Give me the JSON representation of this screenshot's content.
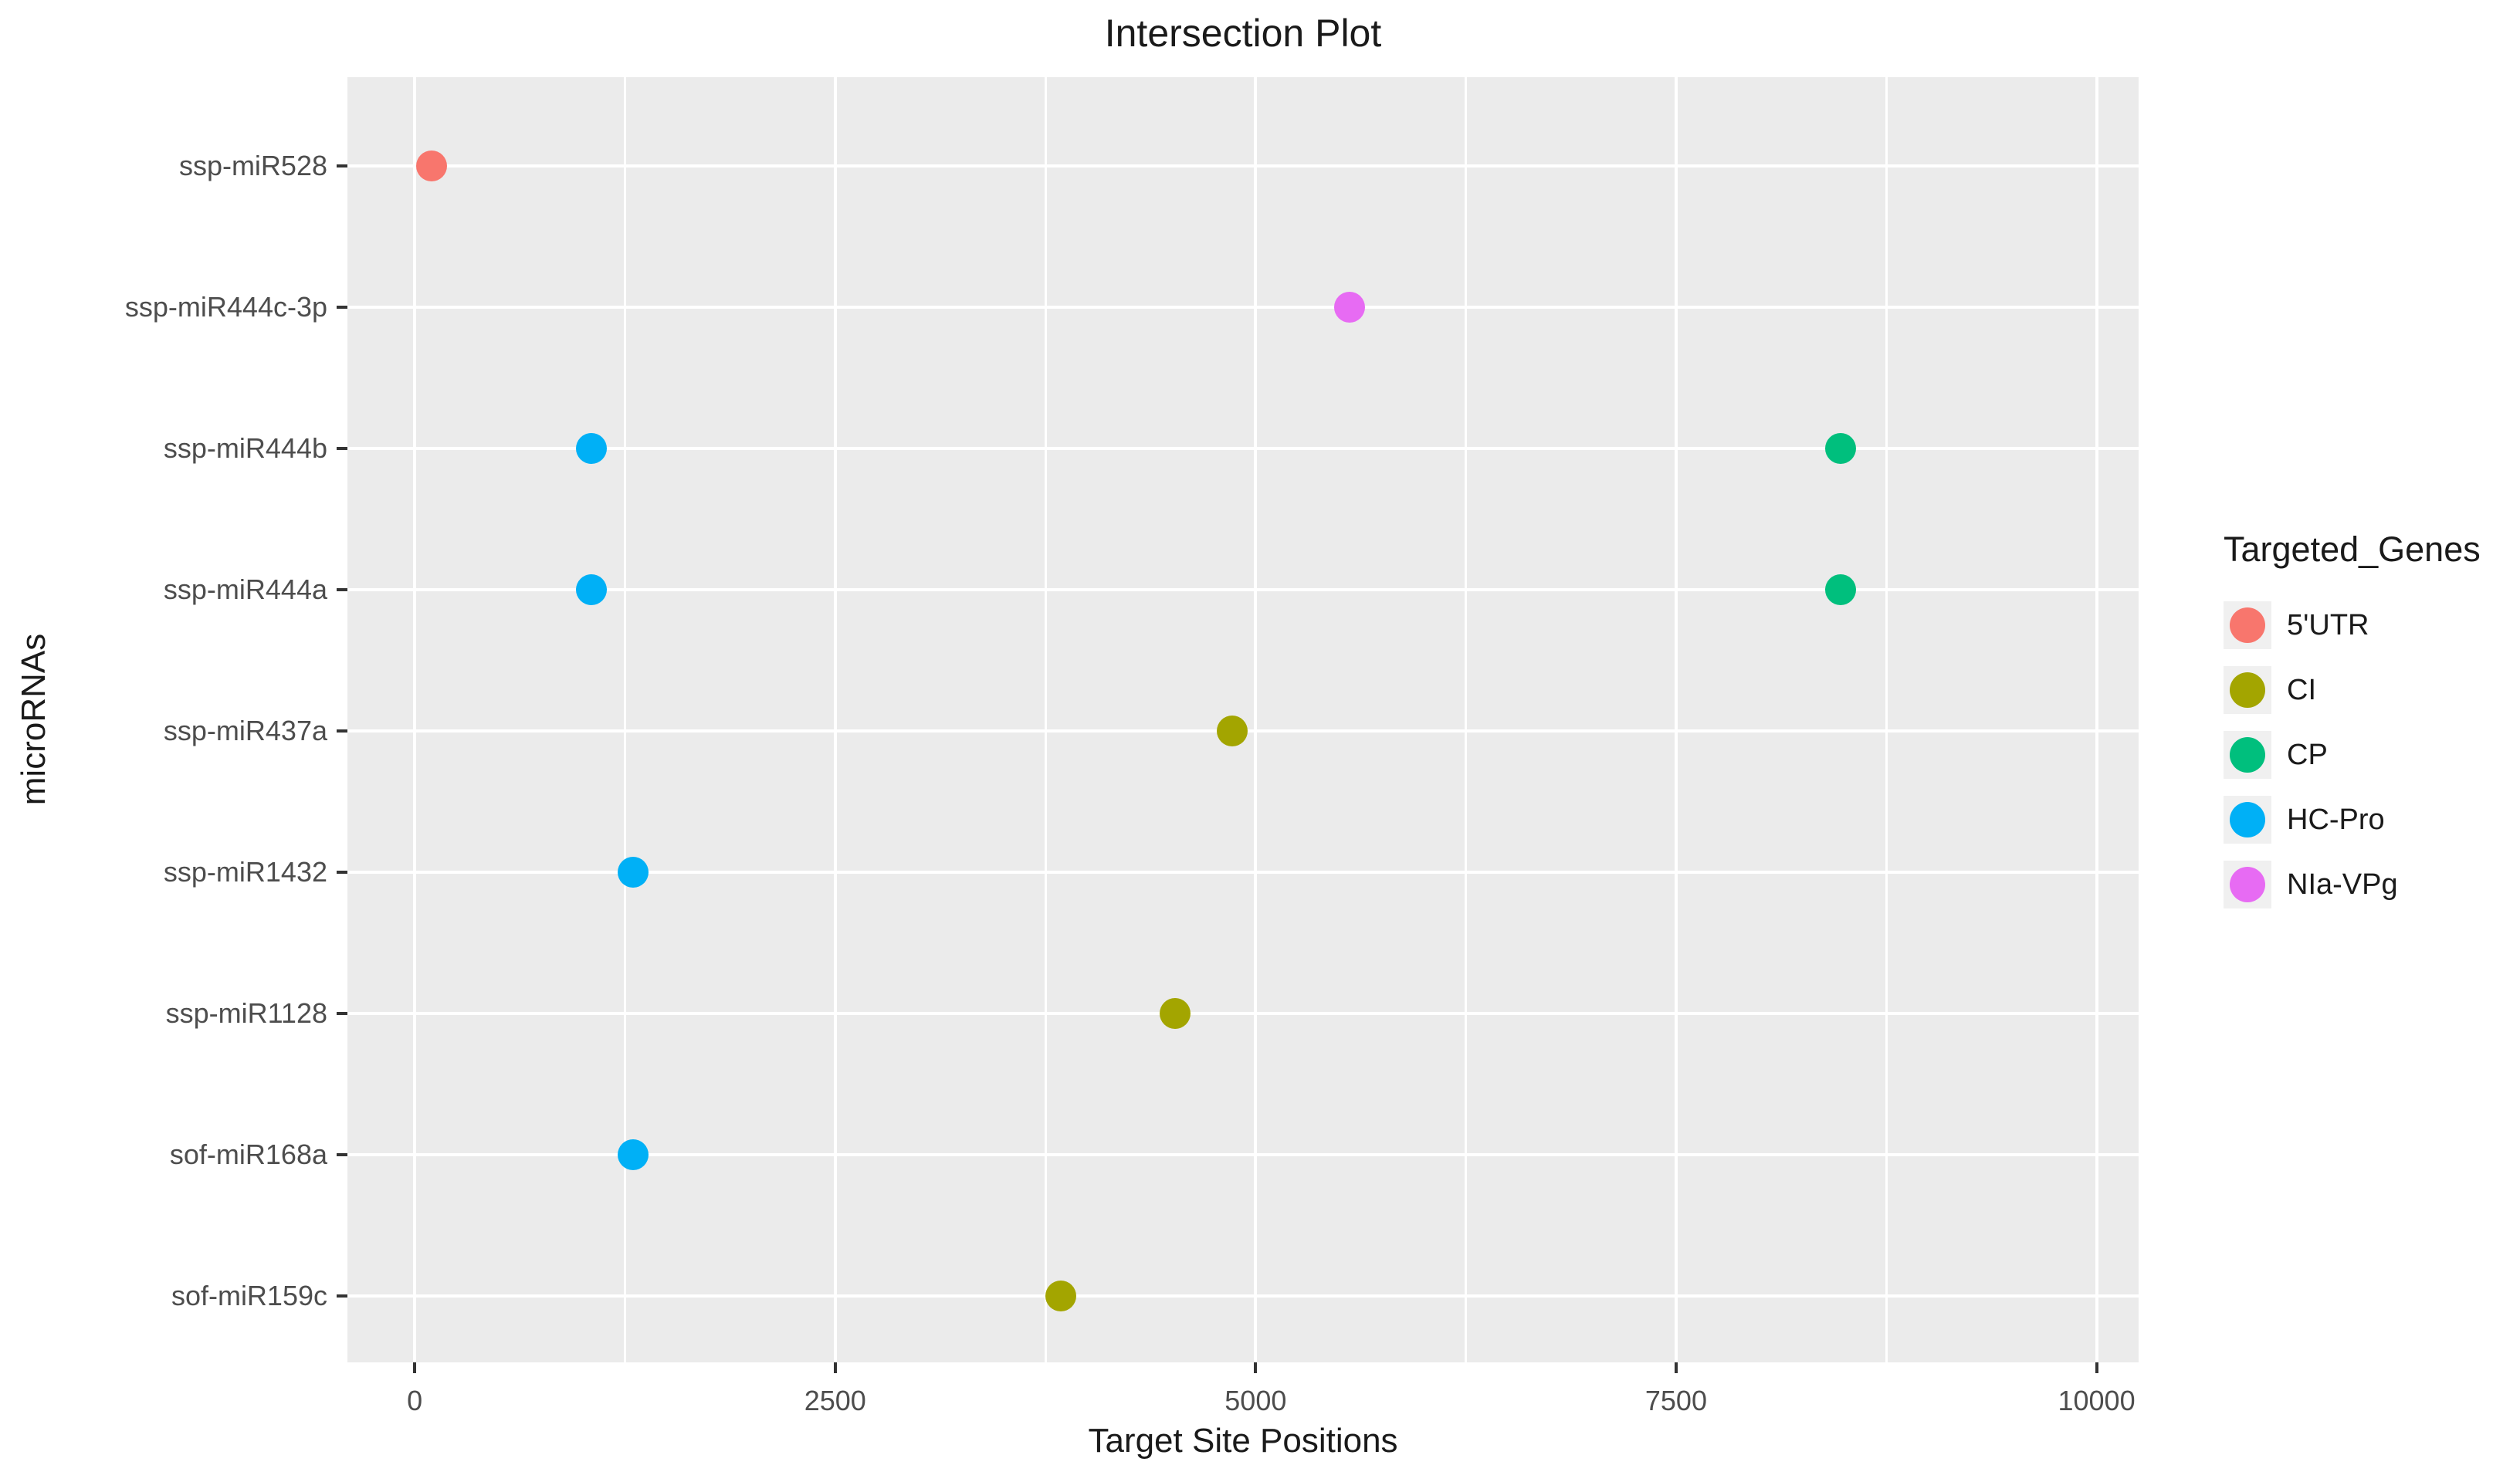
{
  "chart_data": {
    "type": "scatter",
    "title": "Intersection Plot",
    "xlabel": "Target Site Positions",
    "ylabel": "microRNAs",
    "legend_title": "Targeted_Genes",
    "legend_position": "right",
    "grid": true,
    "panel_background": "#EBEBEB",
    "gridline_color": "#FFFFFF",
    "axis_text_color": "#4D4D4D",
    "tick_mark_color": "#333333",
    "legend_key_background": "#F0F0F0",
    "xlim": [
      -400,
      10250
    ],
    "x_ticks": [
      0,
      2500,
      5000,
      7500,
      10000
    ],
    "x_minor_gridlines": [
      1250,
      3750,
      6250,
      8750
    ],
    "y_categories": [
      "ssp-miR528",
      "ssp-miR444c-3p",
      "ssp-miR444b",
      "ssp-miR444a",
      "ssp-miR437a",
      "ssp-miR1432",
      "ssp-miR1128",
      "sof-miR168a",
      "sof-miR159c"
    ],
    "series": [
      {
        "name": "5'UTR",
        "color": "#F8766D",
        "points": [
          {
            "y": "ssp-miR528",
            "x": 100
          }
        ]
      },
      {
        "name": "CI",
        "color": "#A3A500",
        "points": [
          {
            "y": "ssp-miR437a",
            "x": 4860
          },
          {
            "y": "ssp-miR1128",
            "x": 4520
          },
          {
            "y": "sof-miR159c",
            "x": 3840
          }
        ]
      },
      {
        "name": "CP",
        "color": "#00BF7D",
        "points": [
          {
            "y": "ssp-miR444b",
            "x": 8480
          },
          {
            "y": "ssp-miR444a",
            "x": 8480
          }
        ]
      },
      {
        "name": "HC-Pro",
        "color": "#00B0F6",
        "points": [
          {
            "y": "ssp-miR444b",
            "x": 1050
          },
          {
            "y": "ssp-miR444a",
            "x": 1050
          },
          {
            "y": "ssp-miR1432",
            "x": 1300
          },
          {
            "y": "sof-miR168a",
            "x": 1300
          }
        ]
      },
      {
        "name": "NIa-VPg",
        "color": "#E76BF3",
        "points": [
          {
            "y": "ssp-miR444c-3p",
            "x": 5560
          }
        ]
      }
    ]
  }
}
